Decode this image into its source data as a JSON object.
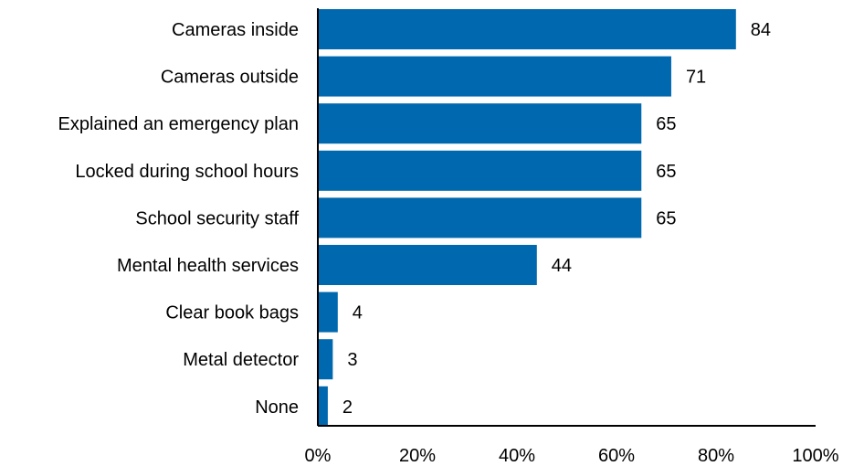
{
  "chart_data": {
    "type": "bar",
    "orientation": "horizontal",
    "categories": [
      "Cameras inside",
      "Cameras outside",
      "Explained an emergency plan",
      "Locked during school hours",
      "School security staff",
      "Mental health services",
      "Clear book bags",
      "Metal detector",
      "None"
    ],
    "values": [
      84,
      71,
      65,
      65,
      65,
      44,
      4,
      3,
      2
    ],
    "value_labels": [
      "84",
      "71",
      "65",
      "65",
      "65",
      "44",
      "4",
      "3",
      "2"
    ],
    "xlim": [
      0,
      100
    ],
    "xticks": [
      0,
      20,
      40,
      60,
      80,
      100
    ],
    "xtick_labels": [
      "0%",
      "20%",
      "40%",
      "60%",
      "80%",
      "100%"
    ],
    "title": "",
    "xlabel": "",
    "ylabel": "",
    "grid": false,
    "legend": "none",
    "bar_color": "#0068AE"
  }
}
